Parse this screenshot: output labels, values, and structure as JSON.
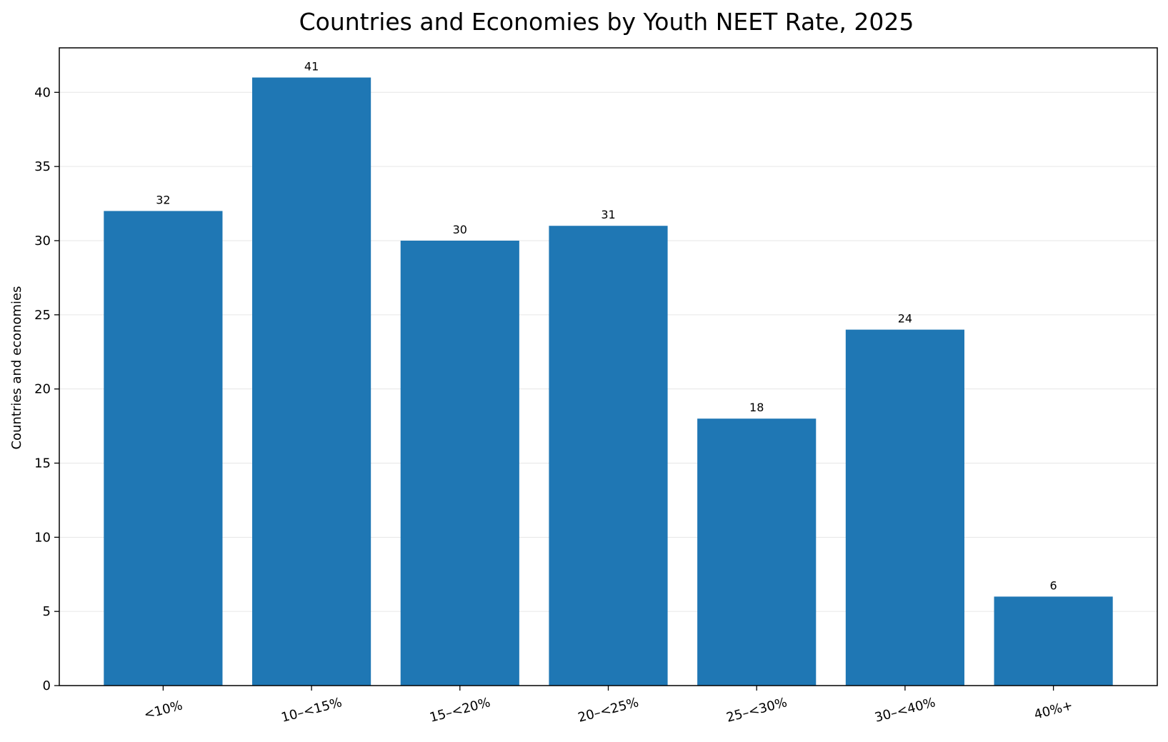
{
  "chart_data": {
    "type": "bar",
    "title": "Countries and Economies by Youth NEET Rate, 2025",
    "xlabel": "",
    "ylabel": "Countries and economies",
    "categories": [
      "<10%",
      "10–<15%",
      "15–<20%",
      "20–<25%",
      "25–<30%",
      "30–<40%",
      "40%+"
    ],
    "values": [
      32,
      41,
      30,
      31,
      18,
      24,
      6
    ],
    "ylim": [
      0,
      43
    ],
    "yticks": [
      0,
      5,
      10,
      15,
      20,
      25,
      30,
      35,
      40
    ],
    "grid": "y",
    "bar_color": "#1f77b4",
    "data_labels": true
  }
}
